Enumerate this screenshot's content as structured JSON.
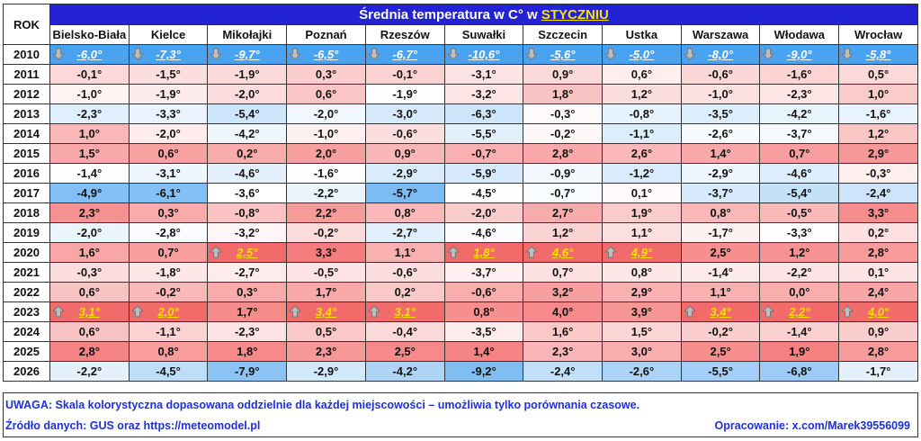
{
  "header": {
    "rok_label": "ROK",
    "title_prefix": "Średnia temperatura w C° w ",
    "title_month": "STYCZNIU"
  },
  "cities": [
    "Bielsko-Biała",
    "Kielce",
    "Mikołajki",
    "Poznań",
    "Rzeszów",
    "Suwałki",
    "Szczecin",
    "Ustka",
    "Warszawa",
    "Włodawa",
    "Wrocław"
  ],
  "rows": [
    {
      "year": "2010",
      "cells": [
        {
          "v": -6.0,
          "t": "-6,0°",
          "e": "min"
        },
        {
          "v": -7.3,
          "t": "-7,3°",
          "e": "min"
        },
        {
          "v": -9.7,
          "t": "-9,7°",
          "e": "min"
        },
        {
          "v": -6.5,
          "t": "-6,5°",
          "e": "min"
        },
        {
          "v": -6.7,
          "t": "-6,7°",
          "e": "min"
        },
        {
          "v": -10.6,
          "t": "-10,6°",
          "e": "min"
        },
        {
          "v": -5.6,
          "t": "-5,6°",
          "e": "min"
        },
        {
          "v": -5.0,
          "t": "-5,0°",
          "e": "min"
        },
        {
          "v": -8.0,
          "t": "-8,0°",
          "e": "min"
        },
        {
          "v": -9.0,
          "t": "-9,0°",
          "e": "min"
        },
        {
          "v": -5.8,
          "t": "-5,8°",
          "e": "min"
        }
      ]
    },
    {
      "year": "2011",
      "cells": [
        {
          "v": -0.1,
          "t": "-0,1°"
        },
        {
          "v": -1.5,
          "t": "-1,5°"
        },
        {
          "v": -1.9,
          "t": "-1,9°"
        },
        {
          "v": 0.3,
          "t": "0,3°"
        },
        {
          "v": -0.1,
          "t": "-0,1°"
        },
        {
          "v": -3.1,
          "t": "-3,1°"
        },
        {
          "v": 0.9,
          "t": "0,9°"
        },
        {
          "v": 0.6,
          "t": "0,6°"
        },
        {
          "v": -0.6,
          "t": "-0,6°"
        },
        {
          "v": -1.6,
          "t": "-1,6°"
        },
        {
          "v": 0.5,
          "t": "0,5°"
        }
      ]
    },
    {
      "year": "2012",
      "cells": [
        {
          "v": -1.0,
          "t": "-1,0°"
        },
        {
          "v": -1.9,
          "t": "-1,9°"
        },
        {
          "v": -2.0,
          "t": "-2,0°"
        },
        {
          "v": 0.6,
          "t": "0,6°"
        },
        {
          "v": -1.9,
          "t": "-1,9°"
        },
        {
          "v": -3.2,
          "t": "-3,2°"
        },
        {
          "v": 1.8,
          "t": "1,8°"
        },
        {
          "v": 1.2,
          "t": "1,2°"
        },
        {
          "v": -1.0,
          "t": "-1,0°"
        },
        {
          "v": -2.3,
          "t": "-2,3°"
        },
        {
          "v": 1.0,
          "t": "1,0°"
        }
      ]
    },
    {
      "year": "2013",
      "cells": [
        {
          "v": -2.3,
          "t": "-2,3°"
        },
        {
          "v": -3.3,
          "t": "-3,3°"
        },
        {
          "v": -5.4,
          "t": "-5,4°"
        },
        {
          "v": -2.0,
          "t": "-2,0°"
        },
        {
          "v": -3.0,
          "t": "-3,0°"
        },
        {
          "v": -6.3,
          "t": "-6,3°"
        },
        {
          "v": -0.3,
          "t": "-0,3°"
        },
        {
          "v": -0.8,
          "t": "-0,8°"
        },
        {
          "v": -3.5,
          "t": "-3,5°"
        },
        {
          "v": -4.2,
          "t": "-4,2°"
        },
        {
          "v": -1.6,
          "t": "-1,6°"
        }
      ]
    },
    {
      "year": "2014",
      "cells": [
        {
          "v": 1.0,
          "t": "1,0°"
        },
        {
          "v": -2.0,
          "t": "-2,0°"
        },
        {
          "v": -4.2,
          "t": "-4,2°"
        },
        {
          "v": -1.0,
          "t": "-1,0°"
        },
        {
          "v": -0.6,
          "t": "-0,6°"
        },
        {
          "v": -5.5,
          "t": "-5,5°"
        },
        {
          "v": -0.2,
          "t": "-0,2°"
        },
        {
          "v": -1.1,
          "t": "-1,1°"
        },
        {
          "v": -2.6,
          "t": "-2,6°"
        },
        {
          "v": -3.7,
          "t": "-3,7°"
        },
        {
          "v": 1.2,
          "t": "1,2°"
        }
      ]
    },
    {
      "year": "2015",
      "cells": [
        {
          "v": 1.5,
          "t": "1,5°"
        },
        {
          "v": 0.6,
          "t": "0,6°"
        },
        {
          "v": 0.2,
          "t": "0,2°"
        },
        {
          "v": 2.0,
          "t": "2,0°"
        },
        {
          "v": 0.9,
          "t": "0,9°"
        },
        {
          "v": -0.7,
          "t": "-0,7°"
        },
        {
          "v": 2.8,
          "t": "2,8°"
        },
        {
          "v": 2.6,
          "t": "2,6°"
        },
        {
          "v": 1.4,
          "t": "1,4°"
        },
        {
          "v": 0.7,
          "t": "0,7°"
        },
        {
          "v": 2.9,
          "t": "2,9°"
        }
      ]
    },
    {
      "year": "2016",
      "cells": [
        {
          "v": -1.4,
          "t": "-1,4°"
        },
        {
          "v": -3.1,
          "t": "-3,1°"
        },
        {
          "v": -4.6,
          "t": "-4,6°"
        },
        {
          "v": -1.6,
          "t": "-1,6°"
        },
        {
          "v": -2.9,
          "t": "-2,9°"
        },
        {
          "v": -5.9,
          "t": "-5,9°"
        },
        {
          "v": -0.9,
          "t": "-0,9°"
        },
        {
          "v": -1.2,
          "t": "-1,2°"
        },
        {
          "v": -2.9,
          "t": "-2,9°"
        },
        {
          "v": -4.6,
          "t": "-4,6°"
        },
        {
          "v": -0.3,
          "t": "-0,3°"
        }
      ]
    },
    {
      "year": "2017",
      "cells": [
        {
          "v": -4.9,
          "t": "-4,9°"
        },
        {
          "v": -6.1,
          "t": "-6,1°"
        },
        {
          "v": -3.6,
          "t": "-3,6°"
        },
        {
          "v": -2.2,
          "t": "-2,2°"
        },
        {
          "v": -5.7,
          "t": "-5,7°"
        },
        {
          "v": -4.5,
          "t": "-4,5°"
        },
        {
          "v": -0.7,
          "t": "-0,7°"
        },
        {
          "v": 0.1,
          "t": "0,1°"
        },
        {
          "v": -3.7,
          "t": "-3,7°"
        },
        {
          "v": -5.4,
          "t": "-5,4°"
        },
        {
          "v": -2.4,
          "t": "-2,4°"
        }
      ]
    },
    {
      "year": "2018",
      "cells": [
        {
          "v": 2.3,
          "t": "2,3°"
        },
        {
          "v": 0.3,
          "t": "0,3°"
        },
        {
          "v": -0.8,
          "t": "-0,8°"
        },
        {
          "v": 2.2,
          "t": "2,2°"
        },
        {
          "v": 0.8,
          "t": "0,8°"
        },
        {
          "v": -2.0,
          "t": "-2,0°"
        },
        {
          "v": 2.7,
          "t": "2,7°"
        },
        {
          "v": 1.9,
          "t": "1,9°"
        },
        {
          "v": 0.8,
          "t": "0,8°"
        },
        {
          "v": -0.5,
          "t": "-0,5°"
        },
        {
          "v": 3.3,
          "t": "3,3°"
        }
      ]
    },
    {
      "year": "2019",
      "cells": [
        {
          "v": -2.0,
          "t": "-2,0°"
        },
        {
          "v": -2.8,
          "t": "-2,8°"
        },
        {
          "v": -3.2,
          "t": "-3,2°"
        },
        {
          "v": -0.2,
          "t": "-0,2°"
        },
        {
          "v": -2.7,
          "t": "-2,7°"
        },
        {
          "v": -4.6,
          "t": "-4,6°"
        },
        {
          "v": 1.2,
          "t": "1,2°"
        },
        {
          "v": 1.1,
          "t": "1,1°"
        },
        {
          "v": -1.7,
          "t": "-1,7°"
        },
        {
          "v": -3.3,
          "t": "-3,3°"
        },
        {
          "v": 0.2,
          "t": "0,2°"
        }
      ]
    },
    {
      "year": "2020",
      "cells": [
        {
          "v": 1.6,
          "t": "1,6°"
        },
        {
          "v": 0.7,
          "t": "0,7°"
        },
        {
          "v": 2.5,
          "t": "2,5°",
          "e": "max"
        },
        {
          "v": 3.3,
          "t": "3,3°"
        },
        {
          "v": 1.1,
          "t": "1,1°"
        },
        {
          "v": 1.8,
          "t": "1,8°",
          "e": "max"
        },
        {
          "v": 4.6,
          "t": "4,6°",
          "e": "max"
        },
        {
          "v": 4.9,
          "t": "4,9°",
          "e": "max"
        },
        {
          "v": 2.5,
          "t": "2,5°"
        },
        {
          "v": 1.2,
          "t": "1,2°"
        },
        {
          "v": 2.8,
          "t": "2,8°"
        }
      ]
    },
    {
      "year": "2021",
      "cells": [
        {
          "v": -0.3,
          "t": "-0,3°"
        },
        {
          "v": -1.8,
          "t": "-1,8°"
        },
        {
          "v": -2.7,
          "t": "-2,7°"
        },
        {
          "v": -0.5,
          "t": "-0,5°"
        },
        {
          "v": -0.6,
          "t": "-0,6°"
        },
        {
          "v": -3.7,
          "t": "-3,7°"
        },
        {
          "v": 0.7,
          "t": "0,7°"
        },
        {
          "v": 0.8,
          "t": "0,8°"
        },
        {
          "v": -1.4,
          "t": "-1,4°"
        },
        {
          "v": -2.2,
          "t": "-2,2°"
        },
        {
          "v": 0.1,
          "t": "0,1°"
        }
      ]
    },
    {
      "year": "2022",
      "cells": [
        {
          "v": 0.6,
          "t": "0,6°"
        },
        {
          "v": -0.2,
          "t": "-0,2°"
        },
        {
          "v": 0.3,
          "t": "0,3°"
        },
        {
          "v": 1.7,
          "t": "1,7°"
        },
        {
          "v": 0.2,
          "t": "0,2°"
        },
        {
          "v": -0.6,
          "t": "-0,6°"
        },
        {
          "v": 3.2,
          "t": "3,2°"
        },
        {
          "v": 2.9,
          "t": "2,9°"
        },
        {
          "v": 1.1,
          "t": "1,1°"
        },
        {
          "v": 0.0,
          "t": "0,0°"
        },
        {
          "v": 2.4,
          "t": "2,4°"
        }
      ]
    },
    {
      "year": "2023",
      "cells": [
        {
          "v": 3.1,
          "t": "3,1°",
          "e": "max"
        },
        {
          "v": 2.0,
          "t": "2,0°",
          "e": "max"
        },
        {
          "v": 1.7,
          "t": "1,7°"
        },
        {
          "v": 3.4,
          "t": "3,4°",
          "e": "max"
        },
        {
          "v": 3.1,
          "t": "3,1°",
          "e": "max"
        },
        {
          "v": 0.8,
          "t": "0,8°"
        },
        {
          "v": 4.0,
          "t": "4,0°"
        },
        {
          "v": 3.9,
          "t": "3,9°"
        },
        {
          "v": 3.4,
          "t": "3,4°",
          "e": "max"
        },
        {
          "v": 2.2,
          "t": "2,2°",
          "e": "max"
        },
        {
          "v": 4.0,
          "t": "4,0°",
          "e": "max"
        }
      ]
    },
    {
      "year": "2024",
      "cells": [
        {
          "v": 0.6,
          "t": "0,6°"
        },
        {
          "v": -1.1,
          "t": "-1,1°"
        },
        {
          "v": -2.3,
          "t": "-2,3°"
        },
        {
          "v": 0.5,
          "t": "0,5°"
        },
        {
          "v": -0.4,
          "t": "-0,4°"
        },
        {
          "v": -3.5,
          "t": "-3,5°"
        },
        {
          "v": 1.6,
          "t": "1,6°"
        },
        {
          "v": 1.5,
          "t": "1,5°"
        },
        {
          "v": -0.2,
          "t": "-0,2°"
        },
        {
          "v": -1.4,
          "t": "-1,4°"
        },
        {
          "v": 0.9,
          "t": "0,9°"
        }
      ]
    },
    {
      "year": "2025",
      "cells": [
        {
          "v": 2.8,
          "t": "2,8°"
        },
        {
          "v": 0.8,
          "t": "0,8°"
        },
        {
          "v": 1.8,
          "t": "1,8°"
        },
        {
          "v": 2.3,
          "t": "2,3°"
        },
        {
          "v": 2.5,
          "t": "2,5°"
        },
        {
          "v": 1.4,
          "t": "1,4°"
        },
        {
          "v": 2.3,
          "t": "2,3°"
        },
        {
          "v": 3.0,
          "t": "3,0°"
        },
        {
          "v": 2.5,
          "t": "2,5°"
        },
        {
          "v": 1.9,
          "t": "1,9°"
        },
        {
          "v": 2.8,
          "t": "2,8°"
        }
      ]
    },
    {
      "year": "2026",
      "cells": [
        {
          "v": -2.2,
          "t": "-2,2°"
        },
        {
          "v": -4.5,
          "t": "-4,5°"
        },
        {
          "v": -7.9,
          "t": "-7,9°"
        },
        {
          "v": -2.9,
          "t": "-2,9°"
        },
        {
          "v": -4.2,
          "t": "-4,2°"
        },
        {
          "v": -9.2,
          "t": "-9,2°"
        },
        {
          "v": -2.4,
          "t": "-2,4°"
        },
        {
          "v": -2.6,
          "t": "-2,6°"
        },
        {
          "v": -5.5,
          "t": "-5,5°"
        },
        {
          "v": -6.8,
          "t": "-6,8°"
        },
        {
          "v": -1.7,
          "t": "-1,7°"
        }
      ]
    }
  ],
  "footer": {
    "note": "UWAGA: Skala kolorystyczna dopasowana oddzielnie dla każdej miejscowości – umożliwia tylko porównania czasowe.",
    "source": "Źródło danych: GUS oraz https://meteomodel.pl",
    "author": "Opracowanie: x.com/Marek39556099"
  },
  "colors": {
    "title_bg": "#2323d3",
    "min_cell": "#4aa3f0",
    "max_cell": "#f26b6b",
    "cold": "#5aaaf0",
    "warm": "#f57a7a",
    "text_blue": "#1e30d8",
    "highlight_yellow": "#ffe200"
  }
}
